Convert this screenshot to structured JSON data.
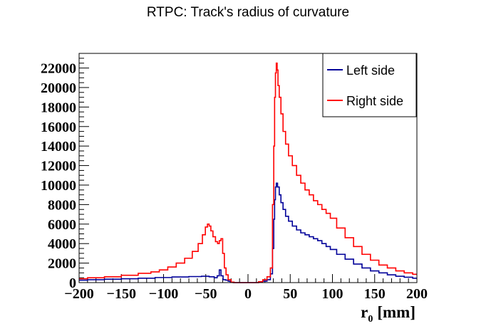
{
  "chart_data": {
    "type": "line",
    "title": "RTPC: Track's radius of curvature",
    "xlabel": "r",
    "xlabel_sub": "0",
    "xlabel_unit": "[mm]",
    "ylabel": "",
    "xlim": [
      -200,
      200
    ],
    "ylim": [
      0,
      23500
    ],
    "x_ticks": [
      -200,
      -150,
      -100,
      -50,
      0,
      50,
      100,
      150,
      200
    ],
    "x_tick_labels": [
      "−200",
      "−150",
      "−100",
      "−50",
      "0",
      "50",
      "100",
      "150",
      "200"
    ],
    "y_ticks": [
      0,
      2000,
      4000,
      6000,
      8000,
      10000,
      12000,
      14000,
      16000,
      18000,
      20000,
      22000
    ],
    "y_tick_labels": [
      "0",
      "2000",
      "4000",
      "6000",
      "8000",
      "10000",
      "12000",
      "14000",
      "16000",
      "18000",
      "20000",
      "22000"
    ],
    "grid": false,
    "legend_position": "top-right",
    "series": [
      {
        "name": "Left side",
        "color": "#000099",
        "points": [
          [
            -200,
            250
          ],
          [
            -180,
            300
          ],
          [
            -160,
            350
          ],
          [
            -140,
            400
          ],
          [
            -120,
            450
          ],
          [
            -100,
            520
          ],
          [
            -80,
            580
          ],
          [
            -60,
            620
          ],
          [
            -50,
            650
          ],
          [
            -42,
            600
          ],
          [
            -38,
            500
          ],
          [
            -35,
            700
          ],
          [
            -33,
            1300
          ],
          [
            -31,
            700
          ],
          [
            -28,
            300
          ],
          [
            -25,
            250
          ],
          [
            -22,
            150
          ],
          [
            -20,
            50
          ],
          [
            -15,
            0
          ],
          [
            0,
            0
          ],
          [
            10,
            0
          ],
          [
            15,
            50
          ],
          [
            20,
            150
          ],
          [
            25,
            300
          ],
          [
            28,
            900
          ],
          [
            30,
            3500
          ],
          [
            31,
            6500
          ],
          [
            32,
            8500
          ],
          [
            33,
            9800
          ],
          [
            34,
            10200
          ],
          [
            36,
            9800
          ],
          [
            38,
            9000
          ],
          [
            40,
            8200
          ],
          [
            43,
            7500
          ],
          [
            46,
            6800
          ],
          [
            50,
            6300
          ],
          [
            55,
            5800
          ],
          [
            60,
            5400
          ],
          [
            65,
            5100
          ],
          [
            70,
            4900
          ],
          [
            75,
            4700
          ],
          [
            80,
            4500
          ],
          [
            85,
            4300
          ],
          [
            90,
            4000
          ],
          [
            95,
            3700
          ],
          [
            100,
            3400
          ],
          [
            110,
            2900
          ],
          [
            120,
            2400
          ],
          [
            130,
            1900
          ],
          [
            140,
            1500
          ],
          [
            150,
            1200
          ],
          [
            160,
            1000
          ],
          [
            170,
            800
          ],
          [
            180,
            650
          ],
          [
            190,
            550
          ],
          [
            200,
            450
          ]
        ]
      },
      {
        "name": "Right side",
        "color": "#ff0000",
        "points": [
          [
            -200,
            400
          ],
          [
            -180,
            500
          ],
          [
            -160,
            600
          ],
          [
            -140,
            750
          ],
          [
            -120,
            950
          ],
          [
            -110,
            1100
          ],
          [
            -100,
            1300
          ],
          [
            -90,
            1600
          ],
          [
            -80,
            2000
          ],
          [
            -70,
            2500
          ],
          [
            -62,
            3200
          ],
          [
            -56,
            4000
          ],
          [
            -52,
            4900
          ],
          [
            -49,
            5700
          ],
          [
            -47,
            6000
          ],
          [
            -45,
            5800
          ],
          [
            -43,
            5300
          ],
          [
            -40,
            4700
          ],
          [
            -37,
            4200
          ],
          [
            -35,
            4000
          ],
          [
            -33,
            4300
          ],
          [
            -31,
            4500
          ],
          [
            -29,
            3000
          ],
          [
            -27,
            1500
          ],
          [
            -25,
            800
          ],
          [
            -22,
            300
          ],
          [
            -18,
            50
          ],
          [
            -15,
            0
          ],
          [
            0,
            0
          ],
          [
            10,
            0
          ],
          [
            15,
            100
          ],
          [
            20,
            300
          ],
          [
            25,
            600
          ],
          [
            28,
            1500
          ],
          [
            30,
            8000
          ],
          [
            31,
            14000
          ],
          [
            32,
            19000
          ],
          [
            33,
            21500
          ],
          [
            34,
            22500
          ],
          [
            35,
            21800
          ],
          [
            36,
            20200
          ],
          [
            38,
            19000
          ],
          [
            40,
            17300
          ],
          [
            43,
            15500
          ],
          [
            46,
            14200
          ],
          [
            50,
            13000
          ],
          [
            55,
            12000
          ],
          [
            60,
            11000
          ],
          [
            65,
            10200
          ],
          [
            70,
            9500
          ],
          [
            75,
            9000
          ],
          [
            80,
            8400
          ],
          [
            85,
            8000
          ],
          [
            90,
            7500
          ],
          [
            95,
            7100
          ],
          [
            100,
            6600
          ],
          [
            110,
            5600
          ],
          [
            120,
            4600
          ],
          [
            130,
            3700
          ],
          [
            140,
            2900
          ],
          [
            150,
            2300
          ],
          [
            160,
            1800
          ],
          [
            170,
            1500
          ],
          [
            180,
            1200
          ],
          [
            190,
            1000
          ],
          [
            200,
            850
          ]
        ]
      }
    ]
  }
}
